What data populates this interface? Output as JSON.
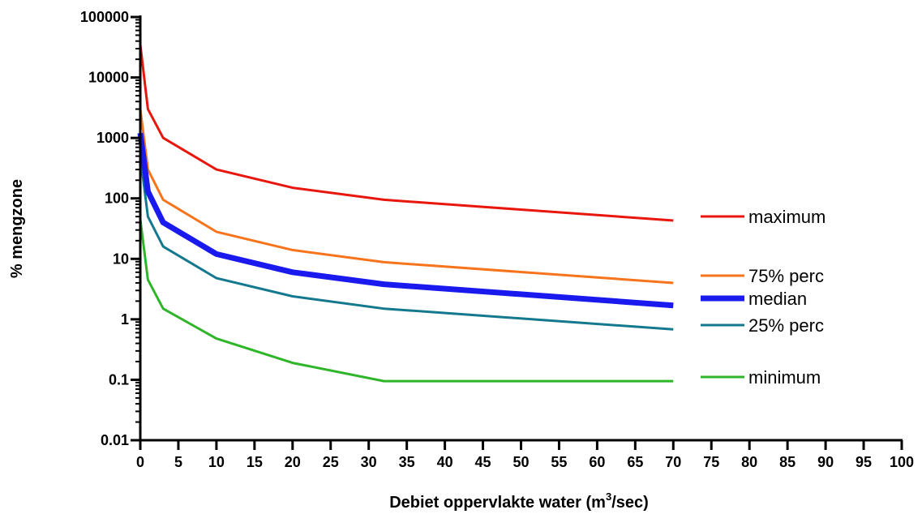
{
  "chart_data": {
    "type": "line",
    "xlabel_prefix": "Debiet oppervlakte water (m",
    "xlabel_sup": "3",
    "xlabel_suffix": "/sec)",
    "ylabel": "% mengzone",
    "y_scale": "log",
    "ylim": [
      0.01,
      100000
    ],
    "xlim": [
      0,
      100
    ],
    "x_ticks": [
      0,
      5,
      10,
      15,
      20,
      25,
      30,
      35,
      40,
      45,
      50,
      55,
      60,
      65,
      70,
      75,
      80,
      85,
      90,
      95,
      100
    ],
    "y_ticks": [
      0.01,
      0.1,
      1,
      10,
      100,
      1000,
      10000,
      100000
    ],
    "y_tick_labels": [
      "0.01",
      "0.1",
      "1",
      "10",
      "100",
      "1000",
      "10000",
      "100000"
    ],
    "grid": false,
    "legend_position": "right",
    "x": [
      0,
      1,
      3,
      10,
      20,
      32,
      70
    ],
    "series": [
      {
        "name": "maximum",
        "color": "#e8160c",
        "width": 3,
        "values": [
          35000,
          3000,
          1000,
          300,
          150,
          95,
          43
        ]
      },
      {
        "name": "75% perc",
        "color": "#f7741c",
        "width": 3,
        "values": [
          3000,
          300,
          95,
          28,
          14,
          8.8,
          4
        ]
      },
      {
        "name": "median",
        "color": "#1a1aee",
        "width": 7,
        "values": [
          1200,
          130,
          40,
          12,
          6,
          3.8,
          1.7
        ]
      },
      {
        "name": "25% perc",
        "color": "#14788e",
        "width": 3,
        "values": [
          500,
          50,
          16,
          4.8,
          2.4,
          1.5,
          0.68
        ]
      },
      {
        "name": "minimum",
        "color": "#2fb52a",
        "width": 3,
        "values": [
          45,
          4.5,
          1.5,
          0.48,
          0.19,
          0.095,
          0.095
        ]
      }
    ]
  }
}
